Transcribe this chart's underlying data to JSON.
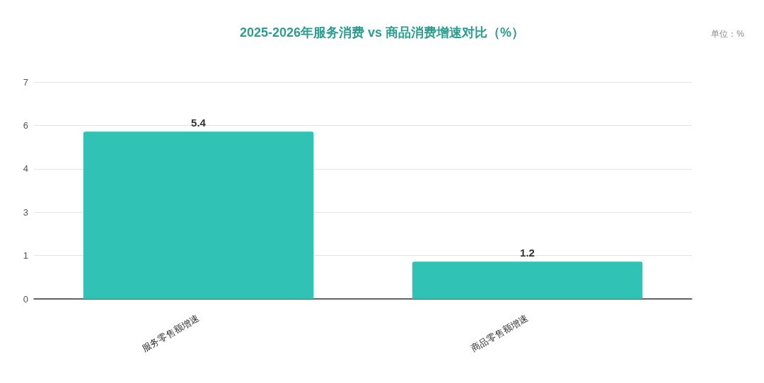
{
  "chart_data": {
    "type": "bar",
    "title": "2025-2026年服务消费 vs 商品消费增速对比（%）",
    "annotations": [
      "单位：%"
    ],
    "categories": [
      "服务零售额增速",
      "商品零售额增速"
    ],
    "values": [
      5.4,
      1.2
    ],
    "color": "#30c2b4",
    "ylim": [
      0,
      7
    ],
    "yticks": [
      0,
      {
        "value": 1.4,
        "label": "1"
      },
      {
        "value": 2.8,
        "label": "3"
      },
      {
        "value": 4.2,
        "label": "4"
      },
      {
        "value": 5.6,
        "label": "6"
      },
      7
    ],
    "grid": "y",
    "data_labels": true
  }
}
